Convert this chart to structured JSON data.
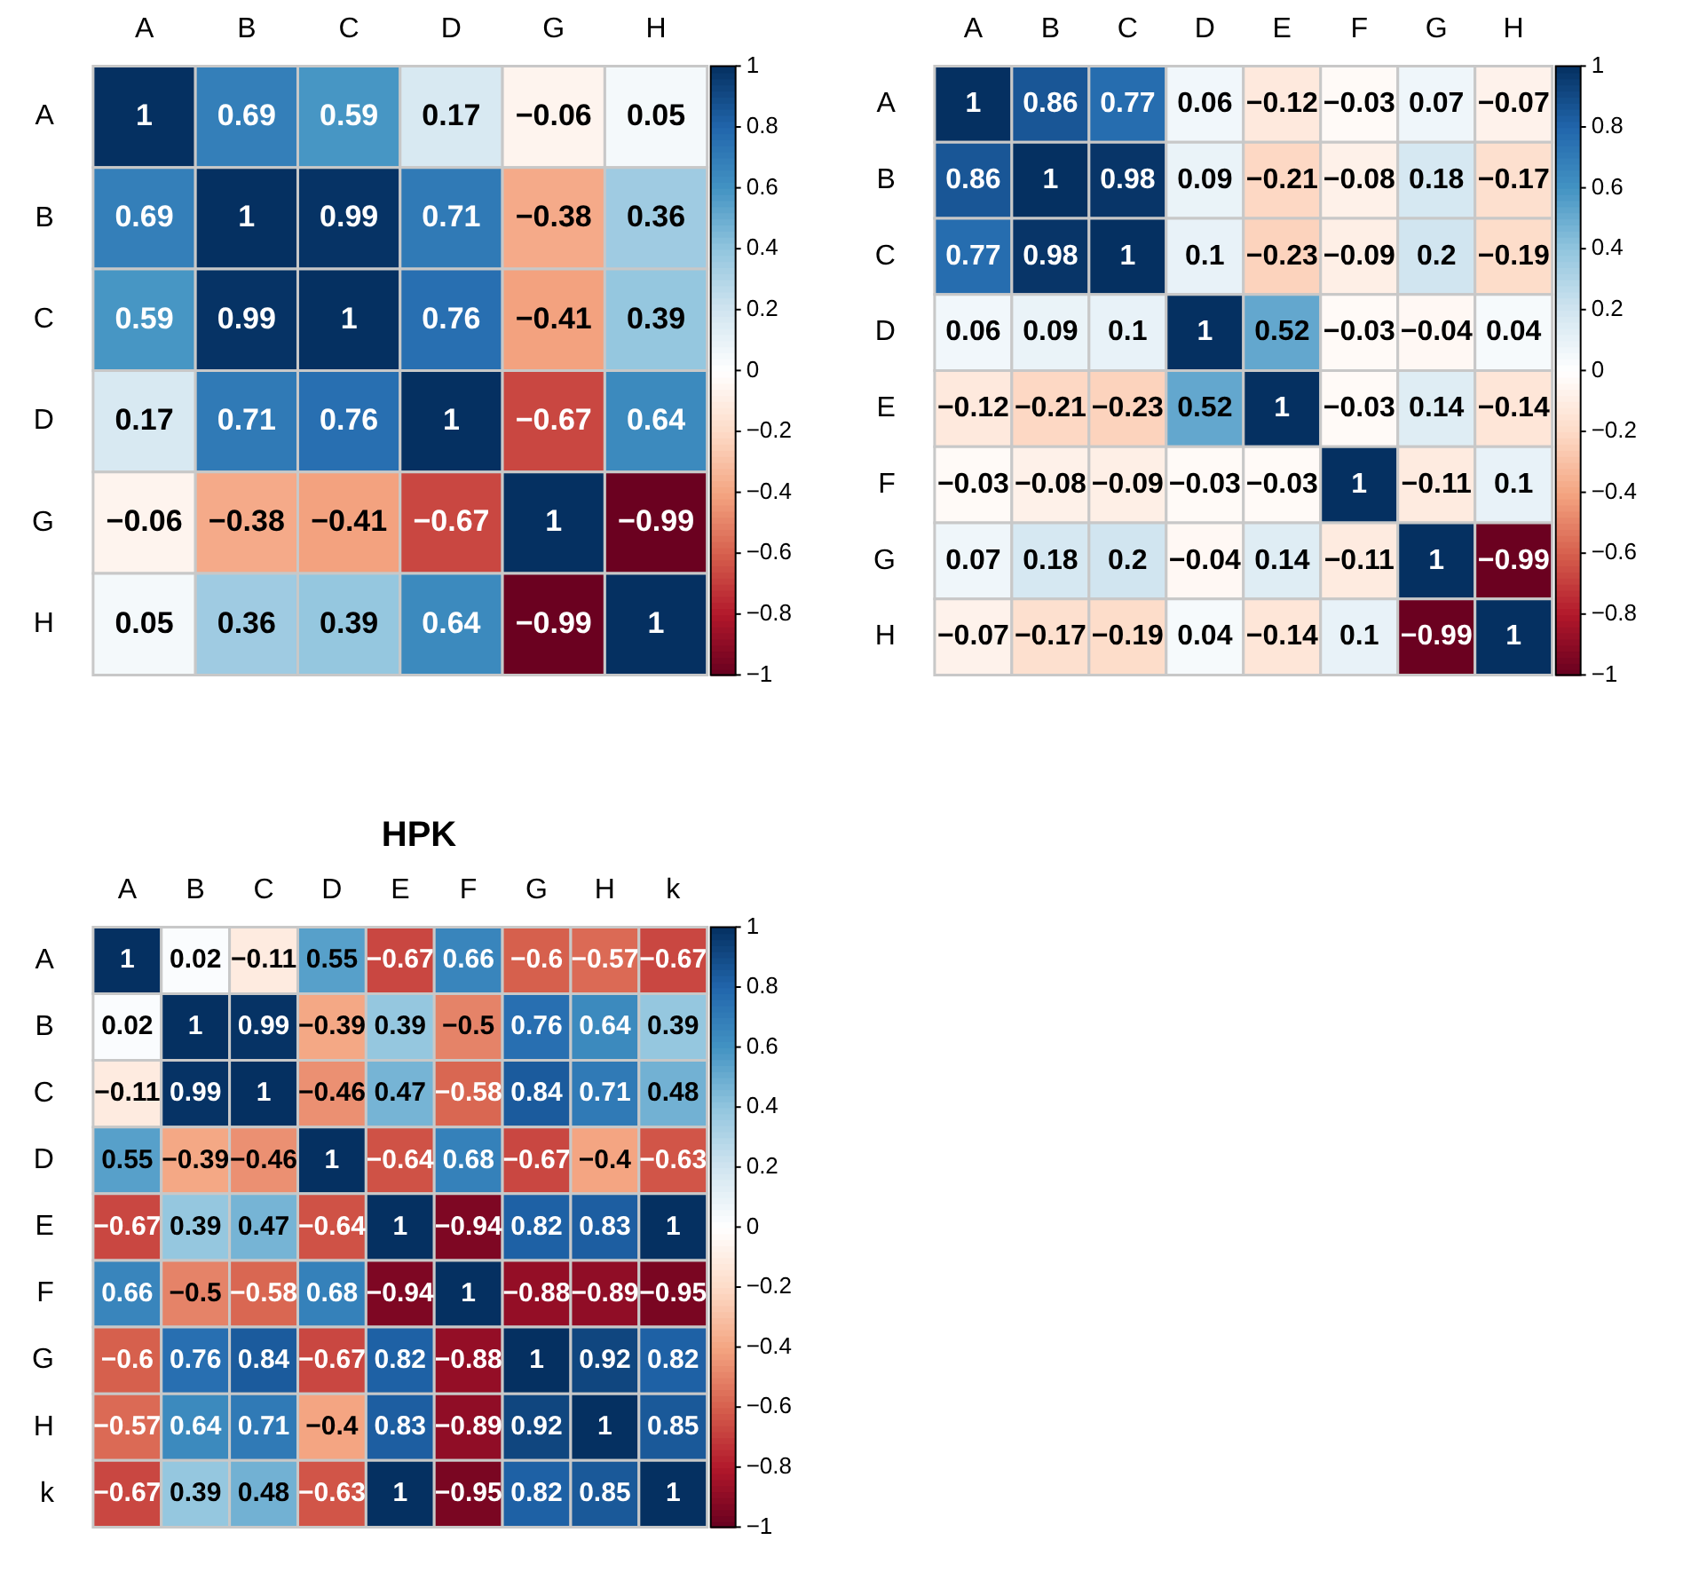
{
  "chart_data": [
    {
      "type": "heatmap",
      "categories": [
        "A",
        "B",
        "C",
        "D",
        "G",
        "H"
      ],
      "y_categories": [
        "A",
        "B",
        "C",
        "D",
        "G",
        "H"
      ],
      "cells": [
        [
          1,
          0.69,
          0.59,
          0.17,
          -0.06,
          0.05
        ],
        [
          0.69,
          1,
          0.99,
          0.71,
          -0.38,
          0.36
        ],
        [
          0.59,
          0.99,
          1,
          0.76,
          -0.41,
          0.39
        ],
        [
          0.17,
          0.71,
          0.76,
          1,
          -0.67,
          0.64
        ],
        [
          -0.06,
          -0.38,
          -0.41,
          -0.67,
          1,
          -0.99
        ],
        [
          0.05,
          0.36,
          0.39,
          0.64,
          -0.99,
          1
        ]
      ],
      "clim": [
        -1,
        1
      ],
      "cticks": [
        -1,
        -0.8,
        -0.6,
        -0.4,
        -0.2,
        0,
        0.2,
        0.4,
        0.6,
        0.8,
        1
      ],
      "data_labels": true
    },
    {
      "type": "heatmap",
      "categories": [
        "A",
        "B",
        "C",
        "D",
        "E",
        "F",
        "G",
        "H"
      ],
      "y_categories": [
        "A",
        "B",
        "C",
        "D",
        "E",
        "F",
        "G",
        "H"
      ],
      "cells": [
        [
          1,
          0.86,
          0.77,
          0.06,
          -0.12,
          -0.03,
          0.07,
          -0.07
        ],
        [
          0.86,
          1,
          0.98,
          0.09,
          -0.21,
          -0.08,
          0.18,
          -0.17
        ],
        [
          0.77,
          0.98,
          1,
          0.1,
          -0.23,
          -0.09,
          0.2,
          -0.19
        ],
        [
          0.06,
          0.09,
          0.1,
          1,
          0.52,
          -0.03,
          -0.04,
          0.04
        ],
        [
          -0.12,
          -0.21,
          -0.23,
          0.52,
          1,
          -0.03,
          0.14,
          -0.14
        ],
        [
          -0.03,
          -0.08,
          -0.09,
          -0.03,
          -0.03,
          1,
          -0.11,
          0.1
        ],
        [
          0.07,
          0.18,
          0.2,
          -0.04,
          0.14,
          -0.11,
          1,
          -0.99
        ],
        [
          -0.07,
          -0.17,
          -0.19,
          0.04,
          -0.14,
          0.1,
          -0.99,
          1
        ]
      ],
      "clim": [
        -1,
        1
      ],
      "cticks": [
        -1,
        -0.8,
        -0.6,
        -0.4,
        -0.2,
        0,
        0.2,
        0.4,
        0.6,
        0.8,
        1
      ],
      "data_labels": true
    },
    {
      "type": "heatmap",
      "title": "HPK",
      "categories": [
        "A",
        "B",
        "C",
        "D",
        "E",
        "F",
        "G",
        "H",
        "k"
      ],
      "y_categories": [
        "A",
        "B",
        "C",
        "D",
        "E",
        "F",
        "G",
        "H",
        "k"
      ],
      "cells": [
        [
          1,
          0.02,
          -0.11,
          0.55,
          -0.67,
          0.66,
          -0.6,
          -0.57,
          -0.67
        ],
        [
          0.02,
          1,
          0.99,
          -0.39,
          0.39,
          -0.5,
          0.76,
          0.64,
          0.39
        ],
        [
          -0.11,
          0.99,
          1,
          -0.46,
          0.47,
          -0.58,
          0.84,
          0.71,
          0.48
        ],
        [
          0.55,
          -0.39,
          -0.46,
          1,
          -0.64,
          0.68,
          -0.67,
          -0.4,
          -0.63
        ],
        [
          -0.67,
          0.39,
          0.47,
          -0.64,
          1,
          -0.94,
          0.82,
          0.83,
          1
        ],
        [
          0.66,
          -0.5,
          -0.58,
          0.68,
          -0.94,
          1,
          -0.88,
          -0.89,
          -0.95
        ],
        [
          -0.6,
          0.76,
          0.84,
          -0.67,
          0.82,
          -0.88,
          1,
          0.92,
          0.82
        ],
        [
          -0.57,
          0.64,
          0.71,
          -0.4,
          0.83,
          -0.89,
          0.92,
          1,
          0.85
        ],
        [
          -0.67,
          0.39,
          0.48,
          -0.63,
          1,
          -0.95,
          0.82,
          0.85,
          1
        ]
      ],
      "clim": [
        -1,
        1
      ],
      "cticks": [
        -1,
        -0.8,
        -0.6,
        -0.4,
        -0.2,
        0,
        0.2,
        0.4,
        0.6,
        0.8,
        1
      ],
      "data_labels": true
    }
  ]
}
